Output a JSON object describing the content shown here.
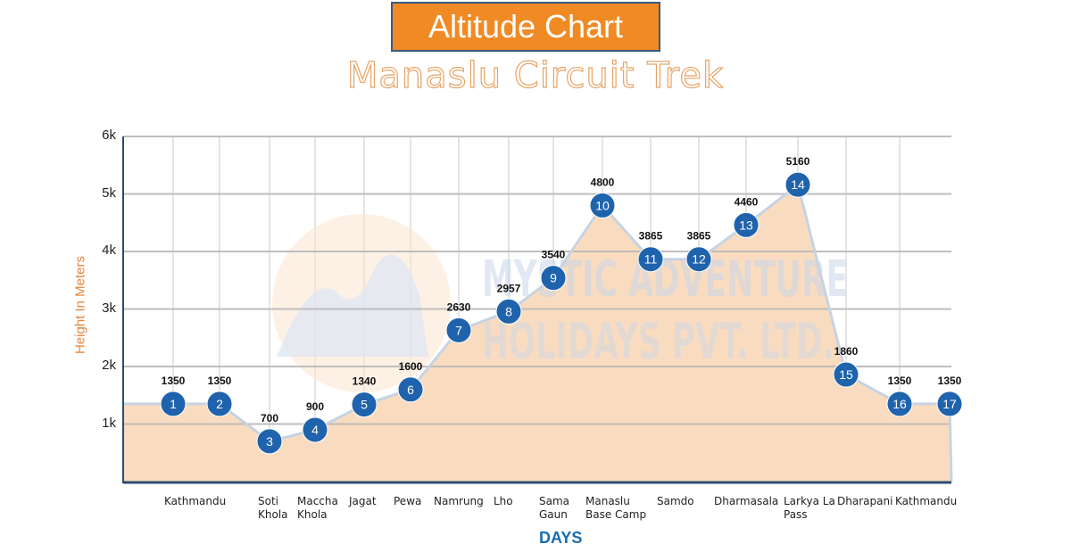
{
  "header": {
    "title": "Altitude Chart",
    "subtitle": "Manaslu Circuit Trek"
  },
  "watermark": {
    "line1": "MYSTIC ADVENTURE",
    "line2": "HOLIDAYS PVT. LTD."
  },
  "colors": {
    "title_bg": "#f08a24",
    "marker": "#1f63ad",
    "area_fill": "#f9dcc0",
    "days_label": "#1a6db0",
    "ylabel": "#e8843a"
  },
  "chart_data": {
    "type": "area",
    "title": "Altitude Chart",
    "subtitle": "Manaslu Circuit Trek",
    "xlabel": "DAYS",
    "ylabel": "Height In Meters",
    "ylim": [
      0,
      6000
    ],
    "yticks": [
      "1k",
      "2k",
      "3k",
      "4k",
      "5k",
      "6k"
    ],
    "grid": true,
    "days": [
      1,
      2,
      3,
      4,
      5,
      6,
      7,
      8,
      9,
      10,
      11,
      12,
      13,
      14,
      15,
      16,
      17
    ],
    "values": [
      1350,
      1350,
      700,
      900,
      1340,
      1600,
      2630,
      2957,
      3540,
      4800,
      3865,
      3865,
      4460,
      5160,
      1860,
      1350,
      1350
    ],
    "location_labels": [
      "Kathmandu",
      "Soti Khola",
      "Maccha Khola",
      "Jagat",
      "Pewa",
      "Namrung",
      "Lho",
      "Sama Gaun",
      "Manaslu Base Camp",
      "Samdo",
      "Dharmasala",
      "Larkya La Pass",
      "Dharapani",
      "Kathmandu"
    ]
  },
  "xaxis": {
    "labels": [
      {
        "line1": "Kathmandu",
        "line2": ""
      },
      {
        "line1": "Soti",
        "line2": "Khola"
      },
      {
        "line1": "Maccha",
        "line2": "Khola"
      },
      {
        "line1": "Jagat",
        "line2": ""
      },
      {
        "line1": "Pewa",
        "line2": ""
      },
      {
        "line1": "Namrung",
        "line2": ""
      },
      {
        "line1": "Lho",
        "line2": ""
      },
      {
        "line1": "Sama",
        "line2": "Gaun"
      },
      {
        "line1": "Manaslu",
        "line2": "Base Camp"
      },
      {
        "line1": "Samdo",
        "line2": ""
      },
      {
        "line1": "Dharmasala",
        "line2": ""
      },
      {
        "line1": "Larkya La",
        "line2": "Pass"
      },
      {
        "line1": "Dharapani",
        "line2": ""
      },
      {
        "line1": "Kathmandu",
        "line2": ""
      }
    ],
    "title": "DAYS"
  },
  "yaxis": {
    "title": "Height In Meters",
    "ticks": [
      "6k",
      "5k",
      "4k",
      "3k",
      "2k",
      "1k"
    ]
  }
}
